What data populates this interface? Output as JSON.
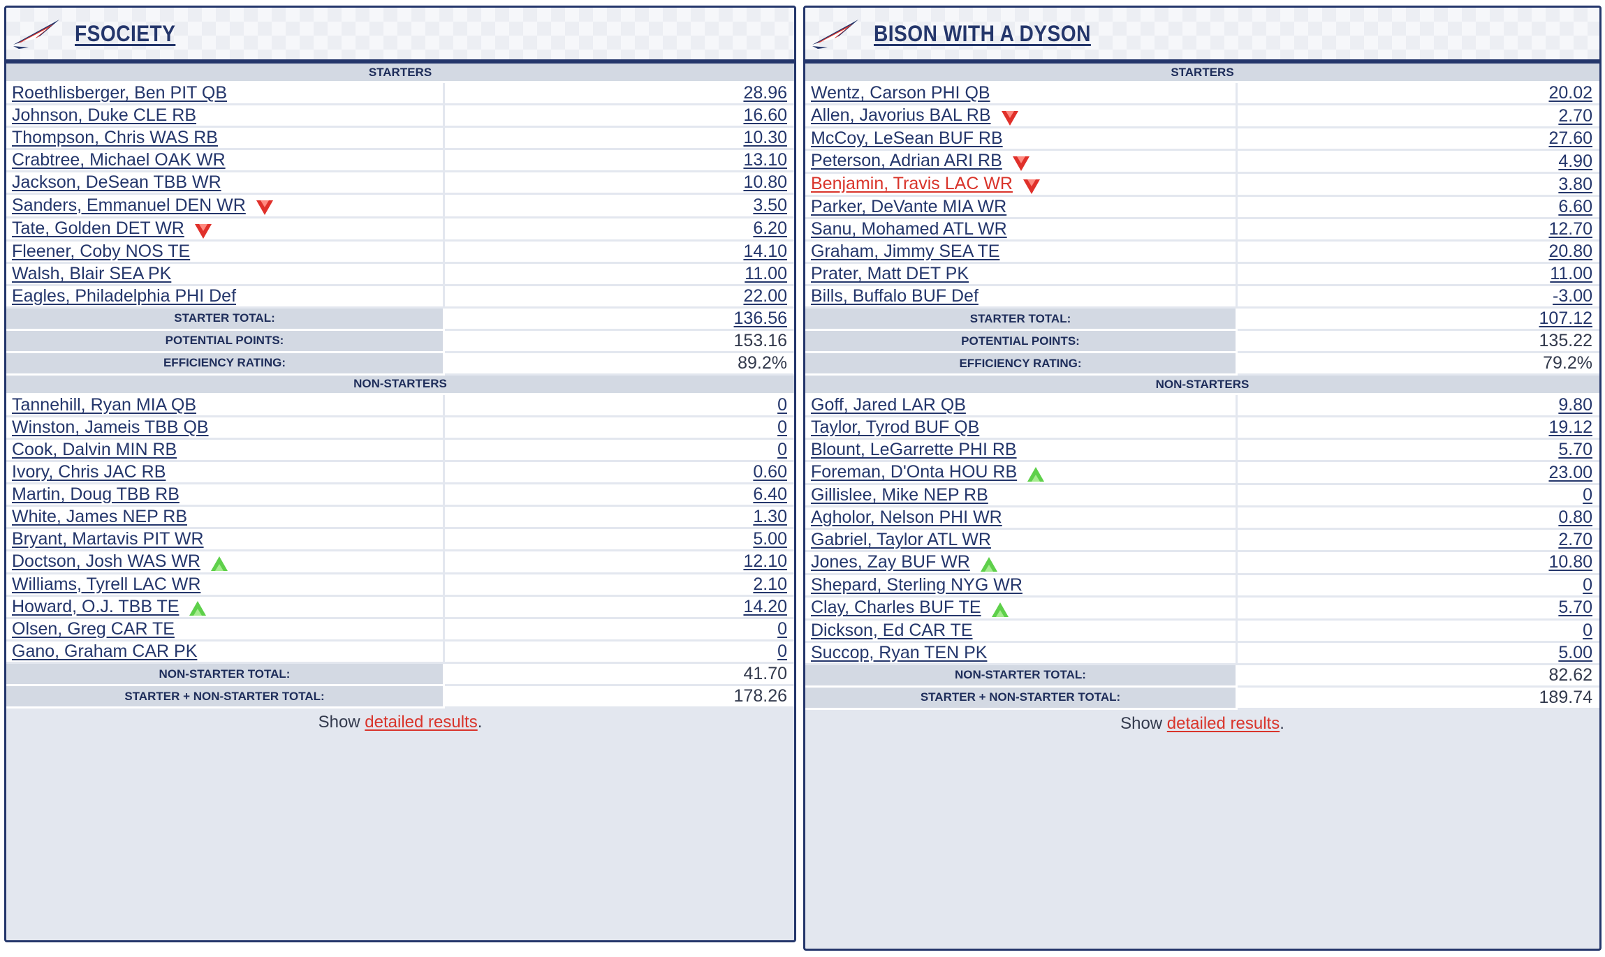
{
  "teams": [
    {
      "name": "FSOCIETY",
      "starters_header": "STARTERS",
      "starters": [
        {
          "player": "Roethlisberger, Ben PIT QB",
          "points": "28.96"
        },
        {
          "player": "Johnson, Duke CLE RB",
          "points": "16.60"
        },
        {
          "player": "Thompson, Chris WAS RB",
          "points": "10.30"
        },
        {
          "player": "Crabtree, Michael OAK WR",
          "points": "13.10"
        },
        {
          "player": "Jackson, DeSean TBB WR",
          "points": "10.80"
        },
        {
          "player": "Sanders, Emmanuel DEN WR",
          "points": "3.50",
          "arrow": "down"
        },
        {
          "player": "Tate, Golden DET WR",
          "points": "6.20",
          "arrow": "down"
        },
        {
          "player": "Fleener, Coby NOS TE",
          "points": "14.10"
        },
        {
          "player": "Walsh, Blair SEA PK",
          "points": "11.00"
        },
        {
          "player": "Eagles, Philadelphia PHI Def",
          "points": "22.00"
        }
      ],
      "starter_total_label": "STARTER TOTAL:",
      "starter_total": "136.56",
      "potential_label": "POTENTIAL POINTS:",
      "potential": "153.16",
      "efficiency_label": "EFFICIENCY RATING:",
      "efficiency": "89.2%",
      "nonstarters_header": "NON-STARTERS",
      "nonstarters": [
        {
          "player": "Tannehill, Ryan MIA QB",
          "points": "0"
        },
        {
          "player": "Winston, Jameis TBB QB",
          "points": "0"
        },
        {
          "player": "Cook, Dalvin MIN RB",
          "points": "0"
        },
        {
          "player": "Ivory, Chris JAC RB",
          "points": "0.60"
        },
        {
          "player": "Martin, Doug TBB RB",
          "points": "6.40"
        },
        {
          "player": "White, James NEP RB",
          "points": "1.30"
        },
        {
          "player": "Bryant, Martavis PIT WR",
          "points": "5.00"
        },
        {
          "player": "Doctson, Josh WAS WR",
          "points": "12.10",
          "arrow": "up"
        },
        {
          "player": "Williams, Tyrell LAC WR",
          "points": "2.10"
        },
        {
          "player": "Howard, O.J. TBB TE",
          "points": "14.20",
          "arrow": "up"
        },
        {
          "player": "Olsen, Greg CAR TE",
          "points": "0"
        },
        {
          "player": "Gano, Graham CAR PK",
          "points": "0"
        }
      ],
      "nonstarter_total_label": "NON-STARTER TOTAL:",
      "nonstarter_total": "41.70",
      "combined_label": "STARTER + NON-STARTER TOTAL:",
      "combined_total": "178.26",
      "footer_prefix": "Show ",
      "footer_link": "detailed results",
      "footer_suffix": "."
    },
    {
      "name": "BISON WITH A DYSON",
      "starters_header": "STARTERS",
      "starters": [
        {
          "player": "Wentz, Carson PHI QB",
          "points": "20.02"
        },
        {
          "player": "Allen, Javorius BAL RB",
          "points": "2.70",
          "arrow": "down"
        },
        {
          "player": "McCoy, LeSean BUF RB",
          "points": "27.60"
        },
        {
          "player": "Peterson, Adrian ARI RB",
          "points": "4.90",
          "arrow": "down"
        },
        {
          "player": "Benjamin, Travis LAC WR",
          "points": "3.80",
          "arrow": "down",
          "injured": true
        },
        {
          "player": "Parker, DeVante MIA WR",
          "points": "6.60"
        },
        {
          "player": "Sanu, Mohamed ATL WR",
          "points": "12.70"
        },
        {
          "player": "Graham, Jimmy SEA TE",
          "points": "20.80"
        },
        {
          "player": "Prater, Matt DET PK",
          "points": "11.00"
        },
        {
          "player": "Bills, Buffalo BUF Def",
          "points": "-3.00"
        }
      ],
      "starter_total_label": "STARTER TOTAL:",
      "starter_total": "107.12",
      "potential_label": "POTENTIAL POINTS:",
      "potential": "135.22",
      "efficiency_label": "EFFICIENCY RATING:",
      "efficiency": "79.2%",
      "nonstarters_header": "NON-STARTERS",
      "nonstarters": [
        {
          "player": "Goff, Jared LAR QB",
          "points": "9.80"
        },
        {
          "player": "Taylor, Tyrod BUF QB",
          "points": "19.12"
        },
        {
          "player": "Blount, LeGarrette PHI RB",
          "points": "5.70"
        },
        {
          "player": "Foreman, D'Onta HOU RB",
          "points": "23.00",
          "arrow": "up"
        },
        {
          "player": "Gillislee, Mike NEP RB",
          "points": "0"
        },
        {
          "player": "Agholor, Nelson PHI WR",
          "points": "0.80"
        },
        {
          "player": "Gabriel, Taylor ATL WR",
          "points": "2.70"
        },
        {
          "player": "Jones, Zay BUF WR",
          "points": "10.80",
          "arrow": "up"
        },
        {
          "player": "Shepard, Sterling NYG WR",
          "points": "0"
        },
        {
          "player": "Clay, Charles BUF TE",
          "points": "5.70",
          "arrow": "up"
        },
        {
          "player": "Dickson, Ed CAR TE",
          "points": "0"
        },
        {
          "player": "Succop, Ryan TEN PK",
          "points": "5.00"
        }
      ],
      "nonstarter_total_label": "NON-STARTER TOTAL:",
      "nonstarter_total": "82.62",
      "combined_label": "STARTER + NON-STARTER TOTAL:",
      "combined_total": "189.74",
      "footer_prefix": "Show ",
      "footer_link": "detailed results",
      "footer_suffix": "."
    }
  ],
  "colors": {
    "navy": "#24366b",
    "header_band": "#d3d9e3",
    "injured_red": "#d9342b",
    "arrow_down": "#e0302a",
    "arrow_up": "#5ed04a"
  }
}
